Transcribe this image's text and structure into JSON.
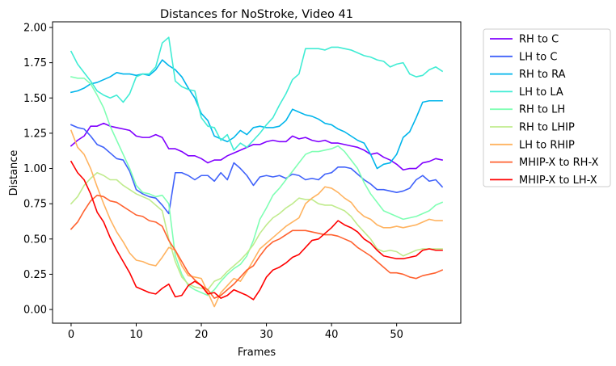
{
  "chart_data": {
    "type": "line",
    "title": "Distances for NoStroke, Video 41",
    "xlabel": "Frames",
    "ylabel": "Distance",
    "xlim": [
      -2.85,
      59.85
    ],
    "ylim": [
      -0.097,
      2.04
    ],
    "xticks": [
      0,
      10,
      20,
      30,
      40,
      50
    ],
    "yticks": [
      0.0,
      0.25,
      0.5,
      0.75,
      1.0,
      1.25,
      1.5,
      1.75,
      2.0
    ],
    "xtick_labels": [
      "0",
      "10",
      "20",
      "30",
      "40",
      "50"
    ],
    "ytick_labels": [
      "0.00",
      "0.25",
      "0.50",
      "0.75",
      "1.00",
      "1.25",
      "1.50",
      "1.75",
      "2.00"
    ],
    "grid": false,
    "legend_position": "outside-right",
    "x": [
      0,
      1,
      2,
      3,
      4,
      5,
      6,
      7,
      8,
      9,
      10,
      11,
      12,
      13,
      14,
      15,
      16,
      17,
      18,
      19,
      20,
      21,
      22,
      23,
      24,
      25,
      26,
      27,
      28,
      29,
      30,
      31,
      32,
      33,
      34,
      35,
      36,
      37,
      38,
      39,
      40,
      41,
      42,
      43,
      44,
      45,
      46,
      47,
      48,
      49,
      50,
      51,
      52,
      53,
      54,
      55,
      56,
      57
    ],
    "series": [
      {
        "name": "RH to C",
        "color": "#8000ff",
        "values": [
          1.16,
          1.2,
          1.23,
          1.3,
          1.3,
          1.32,
          1.3,
          1.29,
          1.28,
          1.27,
          1.23,
          1.22,
          1.22,
          1.24,
          1.22,
          1.14,
          1.14,
          1.12,
          1.09,
          1.09,
          1.07,
          1.04,
          1.06,
          1.06,
          1.09,
          1.11,
          1.13,
          1.15,
          1.17,
          1.17,
          1.19,
          1.2,
          1.19,
          1.19,
          1.23,
          1.21,
          1.22,
          1.2,
          1.19,
          1.2,
          1.18,
          1.18,
          1.17,
          1.16,
          1.15,
          1.13,
          1.1,
          1.11,
          1.08,
          1.06,
          1.03,
          0.99,
          1.0,
          1.0,
          1.04,
          1.05,
          1.07,
          1.06
        ]
      },
      {
        "name": "LH to C",
        "color": "#4062fa",
        "values": [
          1.31,
          1.29,
          1.28,
          1.23,
          1.17,
          1.15,
          1.11,
          1.07,
          1.06,
          0.98,
          0.85,
          0.82,
          0.8,
          0.79,
          0.74,
          0.68,
          0.97,
          0.97,
          0.95,
          0.92,
          0.95,
          0.95,
          0.91,
          0.97,
          0.92,
          1.04,
          1.0,
          0.95,
          0.88,
          0.94,
          0.95,
          0.94,
          0.95,
          0.93,
          0.96,
          0.95,
          0.92,
          0.93,
          0.92,
          0.96,
          0.97,
          1.01,
          1.01,
          1.0,
          0.96,
          0.92,
          0.89,
          0.85,
          0.85,
          0.84,
          0.83,
          0.84,
          0.86,
          0.92,
          0.95,
          0.91,
          0.92,
          0.87
        ]
      },
      {
        "name": "RH to RA",
        "color": "#00b5eb",
        "values": [
          1.54,
          1.55,
          1.57,
          1.6,
          1.61,
          1.63,
          1.65,
          1.68,
          1.67,
          1.67,
          1.66,
          1.67,
          1.66,
          1.7,
          1.77,
          1.73,
          1.7,
          1.65,
          1.57,
          1.5,
          1.39,
          1.34,
          1.23,
          1.21,
          1.19,
          1.22,
          1.27,
          1.24,
          1.29,
          1.3,
          1.29,
          1.29,
          1.3,
          1.34,
          1.42,
          1.4,
          1.38,
          1.37,
          1.35,
          1.32,
          1.31,
          1.28,
          1.26,
          1.23,
          1.2,
          1.18,
          1.1,
          1.0,
          1.03,
          1.04,
          1.1,
          1.22,
          1.26,
          1.36,
          1.47,
          1.48,
          1.48,
          1.48
        ]
      },
      {
        "name": "LH to LA",
        "color": "#40ecd4",
        "values": [
          1.83,
          1.74,
          1.68,
          1.62,
          1.55,
          1.52,
          1.5,
          1.52,
          1.47,
          1.53,
          1.65,
          1.67,
          1.67,
          1.72,
          1.89,
          1.93,
          1.62,
          1.58,
          1.56,
          1.55,
          1.36,
          1.3,
          1.29,
          1.2,
          1.24,
          1.13,
          1.18,
          1.15,
          1.2,
          1.25,
          1.31,
          1.36,
          1.45,
          1.53,
          1.63,
          1.67,
          1.85,
          1.85,
          1.85,
          1.84,
          1.86,
          1.86,
          1.85,
          1.84,
          1.82,
          1.8,
          1.79,
          1.77,
          1.76,
          1.72,
          1.74,
          1.75,
          1.67,
          1.65,
          1.66,
          1.7,
          1.72,
          1.69
        ]
      },
      {
        "name": "RH to LH",
        "color": "#80ffb4",
        "values": [
          1.65,
          1.64,
          1.64,
          1.6,
          1.52,
          1.43,
          1.3,
          1.2,
          1.1,
          1.0,
          0.88,
          0.83,
          0.82,
          0.8,
          0.81,
          0.75,
          0.38,
          0.25,
          0.17,
          0.14,
          0.12,
          0.1,
          0.14,
          0.2,
          0.25,
          0.29,
          0.32,
          0.38,
          0.49,
          0.64,
          0.72,
          0.81,
          0.86,
          0.92,
          0.98,
          1.04,
          1.1,
          1.12,
          1.12,
          1.13,
          1.14,
          1.16,
          1.12,
          1.06,
          1.0,
          0.9,
          0.82,
          0.76,
          0.7,
          0.68,
          0.66,
          0.64,
          0.65,
          0.66,
          0.68,
          0.7,
          0.74,
          0.76
        ]
      },
      {
        "name": "RH to LHIP",
        "color": "#c0eb8d",
        "values": [
          0.75,
          0.8,
          0.88,
          0.93,
          0.97,
          0.95,
          0.92,
          0.92,
          0.88,
          0.85,
          0.82,
          0.8,
          0.78,
          0.74,
          0.7,
          0.5,
          0.34,
          0.23,
          0.18,
          0.16,
          0.15,
          0.14,
          0.2,
          0.22,
          0.27,
          0.31,
          0.35,
          0.4,
          0.46,
          0.54,
          0.6,
          0.65,
          0.68,
          0.72,
          0.75,
          0.79,
          0.78,
          0.78,
          0.75,
          0.74,
          0.74,
          0.72,
          0.7,
          0.66,
          0.6,
          0.55,
          0.5,
          0.43,
          0.41,
          0.42,
          0.41,
          0.38,
          0.4,
          0.42,
          0.43,
          0.43,
          0.43,
          0.43
        ]
      },
      {
        "name": "LH to RHIP",
        "color": "#ffb360",
        "values": [
          1.27,
          1.15,
          1.1,
          1.0,
          0.87,
          0.75,
          0.64,
          0.55,
          0.48,
          0.4,
          0.35,
          0.34,
          0.32,
          0.31,
          0.37,
          0.44,
          0.42,
          0.31,
          0.24,
          0.23,
          0.22,
          0.12,
          0.02,
          0.12,
          0.17,
          0.22,
          0.2,
          0.27,
          0.35,
          0.43,
          0.47,
          0.51,
          0.55,
          0.59,
          0.62,
          0.65,
          0.75,
          0.79,
          0.82,
          0.87,
          0.86,
          0.83,
          0.79,
          0.76,
          0.7,
          0.66,
          0.64,
          0.6,
          0.58,
          0.58,
          0.59,
          0.58,
          0.59,
          0.6,
          0.62,
          0.64,
          0.63,
          0.63
        ]
      },
      {
        "name": "MHIP-X to RH-X",
        "color": "#ff6230",
        "values": [
          0.57,
          0.62,
          0.7,
          0.77,
          0.81,
          0.8,
          0.77,
          0.76,
          0.73,
          0.7,
          0.67,
          0.66,
          0.63,
          0.62,
          0.59,
          0.49,
          0.42,
          0.34,
          0.26,
          0.21,
          0.17,
          0.14,
          0.08,
          0.1,
          0.14,
          0.18,
          0.23,
          0.28,
          0.31,
          0.38,
          0.44,
          0.48,
          0.5,
          0.53,
          0.56,
          0.56,
          0.56,
          0.55,
          0.54,
          0.53,
          0.53,
          0.52,
          0.5,
          0.48,
          0.44,
          0.41,
          0.38,
          0.34,
          0.3,
          0.26,
          0.26,
          0.25,
          0.23,
          0.22,
          0.24,
          0.25,
          0.26,
          0.28
        ]
      },
      {
        "name": "MHIP-X to LH-X",
        "color": "#ff0000",
        "values": [
          1.05,
          0.97,
          0.92,
          0.82,
          0.69,
          0.62,
          0.51,
          0.42,
          0.34,
          0.26,
          0.16,
          0.14,
          0.12,
          0.11,
          0.15,
          0.18,
          0.09,
          0.1,
          0.17,
          0.2,
          0.17,
          0.11,
          0.12,
          0.08,
          0.1,
          0.14,
          0.12,
          0.1,
          0.07,
          0.14,
          0.23,
          0.28,
          0.3,
          0.33,
          0.37,
          0.39,
          0.44,
          0.49,
          0.5,
          0.54,
          0.58,
          0.63,
          0.6,
          0.58,
          0.55,
          0.5,
          0.47,
          0.42,
          0.38,
          0.37,
          0.36,
          0.36,
          0.37,
          0.38,
          0.42,
          0.43,
          0.42,
          0.42
        ]
      }
    ]
  }
}
